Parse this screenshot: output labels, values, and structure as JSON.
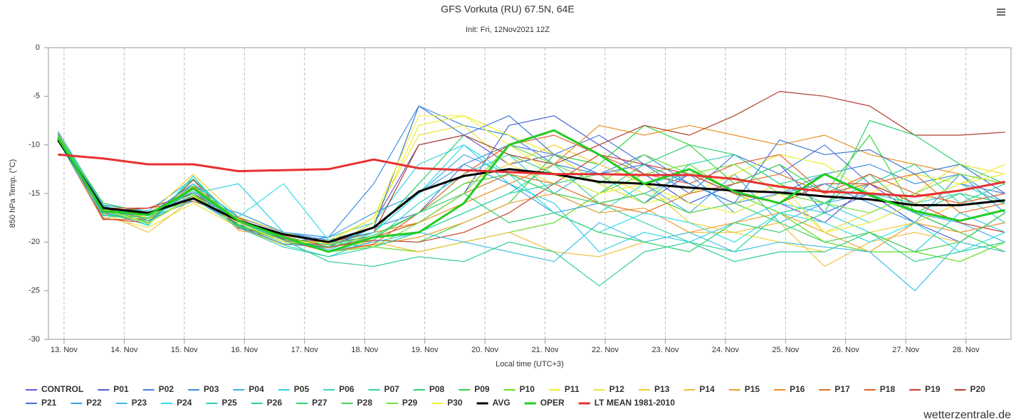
{
  "chart_data": {
    "type": "line",
    "title": "GFS Vorkuta (RU) 67.5N, 64E",
    "subtitle": "Init: Fri, 12Nov2021 12Z",
    "x_label": "Local time (UTC+3)",
    "y_label": "850 hPa Temp. (°C)",
    "credit": "wetterzentrale.de",
    "xlim": [
      12.74,
      28.75
    ],
    "xticks": [
      {
        "value": 13,
        "label": "13. Nov"
      },
      {
        "value": 14,
        "label": "14. Nov"
      },
      {
        "value": 15,
        "label": "15. Nov"
      },
      {
        "value": 16,
        "label": "16. Nov"
      },
      {
        "value": 17,
        "label": "17. Nov"
      },
      {
        "value": 18,
        "label": "18. Nov"
      },
      {
        "value": 19,
        "label": "19. Nov"
      },
      {
        "value": 20,
        "label": "20. Nov"
      },
      {
        "value": 21,
        "label": "21. Nov"
      },
      {
        "value": 22,
        "label": "22. Nov"
      },
      {
        "value": 23,
        "label": "23. Nov"
      },
      {
        "value": 24,
        "label": "24. Nov"
      },
      {
        "value": 25,
        "label": "25. Nov"
      },
      {
        "value": 26,
        "label": "26. Nov"
      },
      {
        "value": 27,
        "label": "27. Nov"
      },
      {
        "value": 28,
        "label": "28. Nov"
      }
    ],
    "ylim": [
      -30,
      0
    ],
    "yticks": [
      0,
      -5,
      -10,
      -15,
      -20,
      -25,
      -30
    ],
    "grid": true,
    "x": [
      12.9,
      13.65,
      14.4,
      15.15,
      15.9,
      16.65,
      17.4,
      18.15,
      18.9,
      19.65,
      20.4,
      21.15,
      21.9,
      22.65,
      23.4,
      24.15,
      24.9,
      25.65,
      26.4,
      27.15,
      27.9,
      28.65
    ],
    "series": [
      {
        "name": "CONTROL",
        "color": "#6a5acd",
        "values": [
          -9.2,
          -16.8,
          -17.5,
          -14.8,
          -17.6,
          -19.8,
          -20.5,
          -18,
          -10,
          -9,
          -12,
          -11,
          -14,
          -16,
          -13,
          -15,
          -16,
          -18,
          -14,
          -17,
          -19,
          -18
        ]
      },
      {
        "name": "P01",
        "color": "#4a5fd6",
        "values": [
          -9.5,
          -16,
          -17,
          -15.5,
          -18.2,
          -19.2,
          -20,
          -19.5,
          -18,
          -15,
          -8,
          -7,
          -10,
          -13,
          -16,
          -14,
          -12,
          -17,
          -15,
          -18,
          -20,
          -17
        ]
      },
      {
        "name": "P02",
        "color": "#4f7be0",
        "values": [
          -8.8,
          -17,
          -18,
          -14,
          -17.5,
          -19,
          -19.8,
          -18.5,
          -17,
          -12,
          -10,
          -11,
          -9,
          -12,
          -15,
          -11,
          -13,
          -10,
          -14,
          -16,
          -14,
          -15
        ]
      },
      {
        "name": "P03",
        "color": "#3d8fe0",
        "values": [
          -9.1,
          -16.5,
          -17.2,
          -15.2,
          -18,
          -20,
          -19.5,
          -14,
          -6,
          -8,
          -9,
          -12,
          -13,
          -11,
          -14,
          -16,
          -15,
          -13,
          -12,
          -14,
          -13,
          -16
        ]
      },
      {
        "name": "P04",
        "color": "#3fb0e8",
        "values": [
          -8.6,
          -16.2,
          -16.8,
          -13.5,
          -17.8,
          -19.5,
          -20.8,
          -19,
          -15,
          -11,
          -13,
          -15,
          -12,
          -14,
          -17,
          -13,
          -18,
          -16,
          -15,
          -17,
          -18,
          -20
        ]
      },
      {
        "name": "P05",
        "color": "#33d0e8",
        "values": [
          -9.3,
          -17.5,
          -17,
          -15,
          -14,
          -19,
          -19.5,
          -18,
          -12,
          -10,
          -14,
          -16,
          -21,
          -19,
          -20,
          -18,
          -16,
          -17,
          -19,
          -21,
          -17,
          -19
        ]
      },
      {
        "name": "P06",
        "color": "#33d6c8",
        "values": [
          -9.4,
          -16.8,
          -18.3,
          -13.2,
          -18.5,
          -20.3,
          -21.5,
          -19.8,
          -16,
          -13,
          -11,
          -15,
          -17,
          -14,
          -13,
          -15,
          -17,
          -16,
          -18,
          -16,
          -15,
          -18
        ]
      },
      {
        "name": "P07",
        "color": "#2ed6a0",
        "values": [
          -9,
          -16.3,
          -17.5,
          -15.8,
          -17,
          -19,
          -20,
          -20.5,
          -19,
          -17,
          -15,
          -12,
          -16,
          -18,
          -20,
          -21,
          -17,
          -16,
          -14,
          -12,
          -16,
          -14
        ]
      },
      {
        "name": "P08",
        "color": "#2ecf70",
        "values": [
          -9.6,
          -17.2,
          -17.8,
          -14.5,
          -18.3,
          -20,
          -20.2,
          -19,
          -14,
          -9,
          -11,
          -13,
          -15,
          -12,
          -10,
          -11,
          -14,
          -16,
          -13,
          -17,
          -15,
          -16
        ]
      },
      {
        "name": "P09",
        "color": "#33d640",
        "values": [
          -8.9,
          -16,
          -17,
          -15,
          -17.8,
          -19.5,
          -20.5,
          -19.8,
          -20,
          -18,
          -16,
          -11,
          -12,
          -8,
          -10,
          -14,
          -12,
          -15,
          -9,
          -17,
          -19,
          -21
        ]
      },
      {
        "name": "P10",
        "color": "#66dd22",
        "values": [
          -9.2,
          -16.6,
          -18,
          -15.2,
          -18,
          -19.8,
          -21,
          -20.5,
          -21,
          -20,
          -19,
          -18,
          -15,
          -13,
          -12,
          -15,
          -17,
          -20,
          -21,
          -21,
          -22,
          -20
        ]
      },
      {
        "name": "P11",
        "color": "#eeee22",
        "values": [
          -9.5,
          -16.5,
          -17.5,
          -14.5,
          -17.6,
          -19.5,
          -20.5,
          -18,
          -8,
          -7,
          -9,
          -11,
          -14,
          -16,
          -15,
          -13,
          -11,
          -12,
          -15,
          -13,
          -14,
          -12
        ]
      },
      {
        "name": "P12",
        "color": "#f0e040",
        "values": [
          -9.1,
          -17.4,
          -18.5,
          -16,
          -18.5,
          -20.3,
          -19.8,
          -17.5,
          -9,
          -8,
          -12,
          -14,
          -13,
          -15,
          -17,
          -16,
          -14,
          -19,
          -17,
          -15,
          -12,
          -13
        ]
      },
      {
        "name": "P13",
        "color": "#f0d030",
        "values": [
          -9.3,
          -16.8,
          -17.2,
          -13,
          -17.4,
          -19,
          -20.2,
          -19.5,
          -17,
          -14,
          -12,
          -10,
          -12,
          -14,
          -18,
          -19,
          -20,
          -21,
          -19,
          -18,
          -16,
          -15
        ]
      },
      {
        "name": "P14",
        "color": "#f0c040",
        "values": [
          -9,
          -17,
          -19,
          -15.5,
          -18,
          -20,
          -20.5,
          -20,
          -21,
          -20,
          -19,
          -21,
          -21.5,
          -20,
          -19,
          -19,
          -18,
          -22.5,
          -20,
          -19,
          -20,
          -21
        ]
      },
      {
        "name": "P15",
        "color": "#f0a030",
        "values": [
          -9.4,
          -16.4,
          -17.8,
          -14,
          -18.8,
          -19.6,
          -21,
          -20.3,
          -19.5,
          -18,
          -16,
          -15,
          -17,
          -16.5,
          -19,
          -18,
          -17,
          -19,
          -21,
          -18,
          -19,
          -18
        ]
      },
      {
        "name": "P16",
        "color": "#e89020",
        "values": [
          -9.2,
          -16.9,
          -17,
          -15.4,
          -18,
          -19.3,
          -20,
          -19,
          -18,
          -16,
          -14,
          -12,
          -8,
          -9,
          -8,
          -9,
          -10,
          -9,
          -11,
          -12,
          -13,
          -14
        ]
      },
      {
        "name": "P17",
        "color": "#e07020",
        "values": [
          -9.5,
          -17.7,
          -17.6,
          -14.3,
          -18.2,
          -20,
          -20.6,
          -19.5,
          -18,
          -15,
          -13,
          -14,
          -16,
          -17,
          -15,
          -14,
          -13,
          -15,
          -14,
          -13,
          -17,
          -16
        ]
      },
      {
        "name": "P18",
        "color": "#e06030",
        "values": [
          -9.3,
          -16.5,
          -16.5,
          -15.8,
          -17.5,
          -19.8,
          -21,
          -20.2,
          -17,
          -13,
          -10,
          -9,
          -11,
          -13,
          -14,
          -12,
          -11,
          -15,
          -13,
          -15,
          -16,
          -15
        ]
      },
      {
        "name": "P19",
        "color": "#d04030",
        "values": [
          -8.8,
          -17.6,
          -18,
          -13.6,
          -18.6,
          -19.4,
          -20.5,
          -19.8,
          -20,
          -19,
          -17,
          -14,
          -11,
          -12,
          -13,
          -15,
          -16,
          -14,
          -14,
          -16,
          -18,
          -19
        ]
      },
      {
        "name": "P20",
        "color": "#b04030",
        "values": [
          -9.1,
          -16.8,
          -16.5,
          -15,
          -17.8,
          -19.7,
          -20,
          -19,
          -10,
          -9,
          -11,
          -12,
          -10,
          -8,
          -9,
          -7,
          -4.5,
          -5,
          -6,
          -9,
          -9,
          -8.7
        ]
      },
      {
        "name": "P21",
        "color": "#3a7ad0",
        "values": [
          -9.4,
          -17,
          -17.2,
          -14,
          -18.4,
          -20.2,
          -20.5,
          -18.5,
          -6,
          -9,
          -7,
          -11,
          -13,
          -12,
          -14,
          -16,
          -9.5,
          -11,
          -10.5,
          -13,
          -12,
          -15
        ]
      },
      {
        "name": "P22",
        "color": "#3aa0e0",
        "values": [
          -9.2,
          -16.2,
          -17.8,
          -15.6,
          -17,
          -19,
          -19.5,
          -17,
          -15,
          -12,
          -14,
          -17,
          -16,
          -15,
          -13,
          -17,
          -15,
          -14,
          -16,
          -18,
          -13,
          -17
        ]
      },
      {
        "name": "P23",
        "color": "#40c0e8",
        "values": [
          -9.6,
          -17.3,
          -17,
          -14.8,
          -18,
          -19.6,
          -21,
          -20,
          -19,
          -20,
          -21,
          -22,
          -18,
          -20,
          -19,
          -21,
          -20,
          -20.5,
          -21,
          -25,
          -20,
          -21
        ]
      },
      {
        "name": "P24",
        "color": "#30e0e8",
        "values": [
          -9,
          -16.6,
          -18.2,
          -14,
          -17.4,
          -14,
          -19.8,
          -19,
          -15,
          -10,
          -13,
          -17,
          -19,
          -17,
          -18,
          -20,
          -17,
          -18,
          -20,
          -18,
          -21,
          -19
        ]
      },
      {
        "name": "P25",
        "color": "#30d0b0",
        "values": [
          -9.3,
          -16.5,
          -17.3,
          -15.5,
          -18.5,
          -20.5,
          -21.5,
          -20.5,
          -19,
          -17,
          -15,
          -14,
          -13,
          -16,
          -12,
          -11,
          -14,
          -13,
          -15,
          -16,
          -14,
          -16
        ]
      },
      {
        "name": "P26",
        "color": "#30d090",
        "values": [
          -8.9,
          -17.2,
          -17.5,
          -14.5,
          -18,
          -19.8,
          -22,
          -22.5,
          -21.5,
          -22,
          -20,
          -21,
          -24.5,
          -21,
          -20,
          -22,
          -21,
          -21,
          -19,
          -22,
          -21,
          -20
        ]
      },
      {
        "name": "P27",
        "color": "#30d070",
        "values": [
          -9.5,
          -16.8,
          -18,
          -13.5,
          -18.2,
          -20,
          -20.5,
          -19.5,
          -17,
          -15,
          -18,
          -17,
          -19,
          -20,
          -21,
          -18,
          -19,
          -17,
          -7.5,
          -9,
          -12,
          -14
        ]
      },
      {
        "name": "P28",
        "color": "#40d050",
        "values": [
          -9.2,
          -16.4,
          -17,
          -15,
          -18.4,
          -19.5,
          -20.3,
          -19.3,
          -17,
          -14,
          -13,
          -15,
          -16,
          -15,
          -17,
          -16,
          -18,
          -20,
          -19,
          -21,
          -20,
          -17
        ]
      },
      {
        "name": "P29",
        "color": "#70e040",
        "values": [
          -9,
          -16.9,
          -17.6,
          -14.2,
          -17.7,
          -19.4,
          -21,
          -20.5,
          -18,
          -15,
          -10,
          -12,
          -14,
          -11,
          -13,
          -12,
          -15,
          -16,
          -17,
          -15,
          -13,
          -14
        ]
      },
      {
        "name": "P30",
        "color": "#f0f040",
        "values": [
          -9.4,
          -16.6,
          -18.1,
          -15.3,
          -18,
          -20,
          -20,
          -17.5,
          -7,
          -7,
          -10,
          -13,
          -15,
          -14,
          -16,
          -17,
          -15,
          -19,
          -18,
          -16,
          -14,
          -13
        ]
      },
      {
        "name": "AVG",
        "color": "#000000",
        "width": 3,
        "values": [
          -9.5,
          -16.5,
          -17,
          -15.5,
          -17.8,
          -19.2,
          -20,
          -18.5,
          -14.8,
          -13.2,
          -12.5,
          -13,
          -13.8,
          -14,
          -14.4,
          -14.7,
          -14.9,
          -15.3,
          -15.6,
          -16.2,
          -16.2,
          -15.7
        ]
      },
      {
        "name": "OPER",
        "color": "#22cc22",
        "width": 3,
        "values": [
          -9.3,
          -16.8,
          -17.2,
          -14.5,
          -17.8,
          -19.5,
          -21,
          -19.5,
          -19,
          -16,
          -10,
          -8.5,
          -11,
          -14,
          -12.5,
          -14.8,
          -16,
          -13,
          -15.2,
          -16.8,
          -17.8,
          -16.7
        ]
      },
      {
        "name": "LT MEAN 1981-2010",
        "color": "#e83030",
        "width": 3,
        "values": [
          -11,
          -11.4,
          -12,
          -12,
          -12.7,
          -12.6,
          -12.5,
          -11.5,
          -12.4,
          -12.6,
          -12.8,
          -13,
          -13,
          -13.1,
          -13.1,
          -13.5,
          -14.3,
          -14.8,
          -15,
          -15.3,
          -14.7,
          -13.8
        ]
      }
    ]
  }
}
